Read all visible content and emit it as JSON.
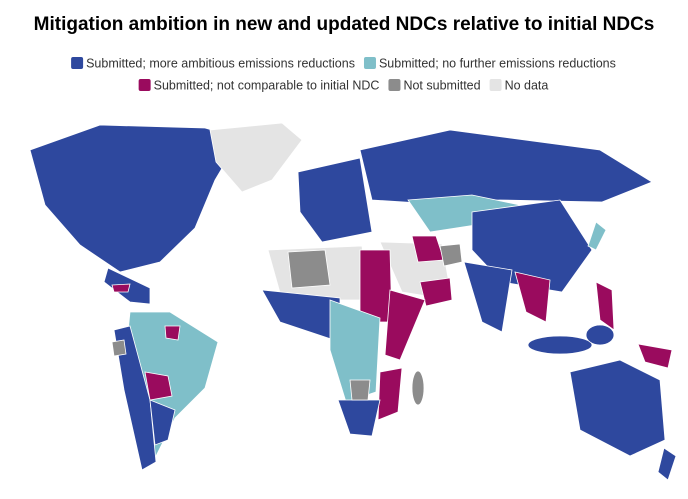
{
  "title": "Mitigation ambition in new and updated NDCs relative to initial NDCs",
  "legend": [
    {
      "label": "Submitted; more ambitious emissions reductions",
      "color": "#2e489e"
    },
    {
      "label": "Submitted; no further emissions reductions",
      "color": "#7fbfc9"
    },
    {
      "label": "Submitted; not comparable to initial NDC",
      "color": "#9a0b5e"
    },
    {
      "label": "Not submitted",
      "color": "#8c8c8c"
    },
    {
      "label": "No data",
      "color": "#e4e4e4"
    }
  ]
}
